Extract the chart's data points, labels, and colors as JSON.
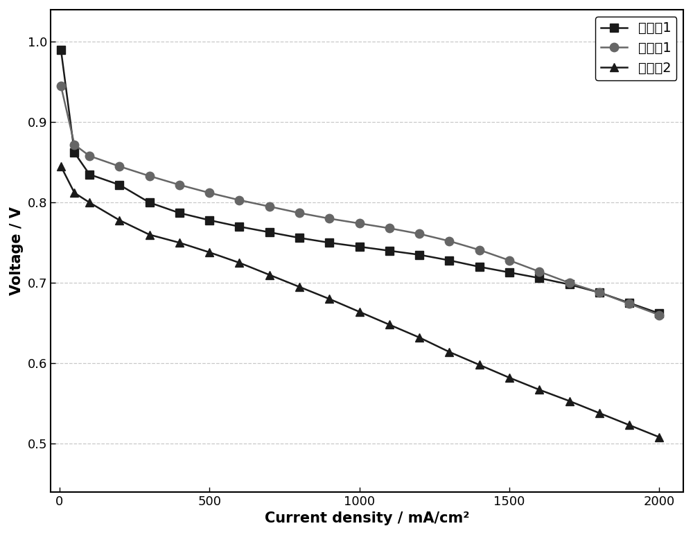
{
  "series": {
    "对比例1": {
      "x": [
        5,
        50,
        100,
        200,
        300,
        400,
        500,
        600,
        700,
        800,
        900,
        1000,
        1100,
        1200,
        1300,
        1400,
        1500,
        1600,
        1700,
        1800,
        1900,
        2000
      ],
      "y": [
        0.99,
        0.862,
        0.835,
        0.822,
        0.8,
        0.787,
        0.778,
        0.77,
        0.763,
        0.756,
        0.75,
        0.745,
        0.74,
        0.735,
        0.728,
        0.72,
        0.713,
        0.706,
        0.698,
        0.688,
        0.675,
        0.662
      ],
      "color": "#1a1a1a",
      "marker": "s",
      "linewidth": 1.8,
      "markersize": 8
    },
    "实施例1": {
      "x": [
        5,
        50,
        100,
        200,
        300,
        400,
        500,
        600,
        700,
        800,
        900,
        1000,
        1100,
        1200,
        1300,
        1400,
        1500,
        1600,
        1700,
        1800,
        1900,
        2000
      ],
      "y": [
        0.945,
        0.872,
        0.858,
        0.845,
        0.833,
        0.822,
        0.812,
        0.803,
        0.795,
        0.787,
        0.78,
        0.774,
        0.768,
        0.761,
        0.752,
        0.741,
        0.728,
        0.714,
        0.7,
        0.688,
        0.674,
        0.66
      ],
      "color": "#666666",
      "marker": "o",
      "linewidth": 1.8,
      "markersize": 9
    },
    "对比例2": {
      "x": [
        5,
        50,
        100,
        200,
        300,
        400,
        500,
        600,
        700,
        800,
        900,
        1000,
        1100,
        1200,
        1300,
        1400,
        1500,
        1600,
        1700,
        1800,
        1900,
        2000
      ],
      "y": [
        0.845,
        0.812,
        0.8,
        0.778,
        0.76,
        0.75,
        0.738,
        0.725,
        0.71,
        0.695,
        0.68,
        0.664,
        0.648,
        0.632,
        0.614,
        0.598,
        0.582,
        0.567,
        0.553,
        0.538,
        0.523,
        0.508
      ],
      "color": "#1a1a1a",
      "marker": "^",
      "linewidth": 1.8,
      "markersize": 9
    }
  },
  "xlabel": "Current density / mA/cm²",
  "ylabel": "Voltage / V",
  "xlim": [
    -30,
    2080
  ],
  "ylim": [
    0.44,
    1.04
  ],
  "xticks": [
    0,
    500,
    1000,
    1500,
    2000
  ],
  "yticks": [
    0.5,
    0.6,
    0.7,
    0.8,
    0.9,
    1.0
  ],
  "grid_color": "#bbbbbb",
  "grid_linestyle": "--",
  "grid_alpha": 0.8,
  "legend_loc": "upper right",
  "legend_fontsize": 14,
  "axis_label_fontsize": 15,
  "tick_fontsize": 13,
  "background_color": "#ffffff",
  "legend_order": [
    "对比例1",
    "实施例1",
    "对比例2"
  ]
}
